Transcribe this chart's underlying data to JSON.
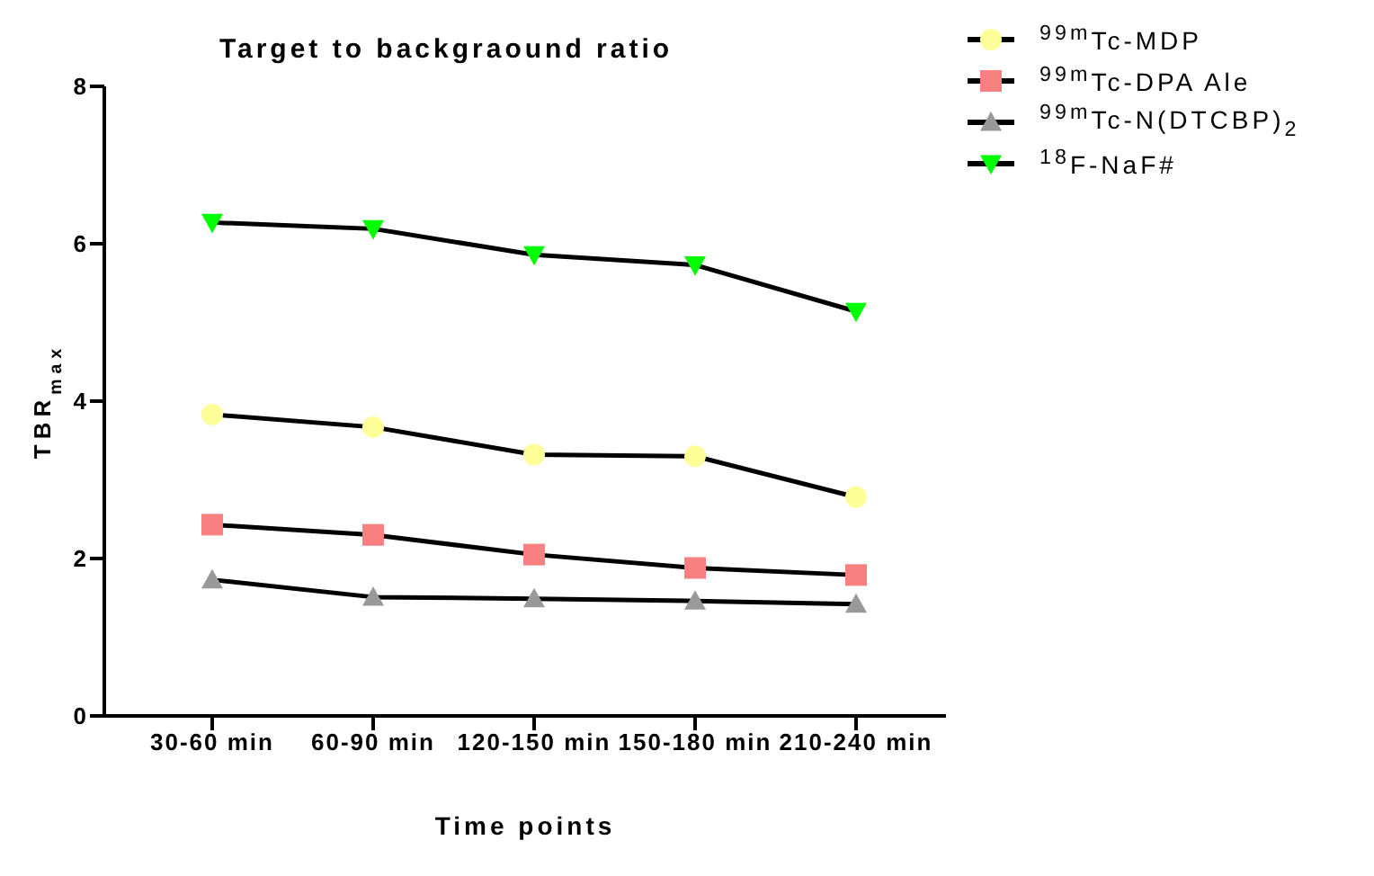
{
  "chart_data": {
    "type": "line",
    "title": "Target to backgraound ratio",
    "xlabel": "Time points",
    "ylabel": "TBR$_{max}$",
    "categories": [
      "30-60 min",
      "60-90 min",
      "120-150 min",
      "150-180 min",
      "210-240 min"
    ],
    "series": [
      {
        "name": "$^{99m}$Tc-MDP",
        "color": "#ffff99",
        "marker": "circle",
        "values": [
          3.83,
          3.67,
          3.32,
          3.3,
          2.78
        ]
      },
      {
        "name": "$^{99m}$Tc-DPA Ale",
        "color": "#f88080",
        "marker": "square",
        "values": [
          2.43,
          2.3,
          2.05,
          1.88,
          1.79
        ]
      },
      {
        "name": "$^{99m}$Tc-N(DTCBP)$_{2}$",
        "color": "#999999",
        "marker": "triangle",
        "values": [
          1.73,
          1.51,
          1.49,
          1.46,
          1.42
        ]
      },
      {
        "name": "$^{18}$F-NaF#",
        "color": "#00ff00",
        "marker": "triangle-down",
        "values": [
          6.27,
          6.19,
          5.86,
          5.73,
          5.14
        ]
      }
    ],
    "ylim": [
      0,
      8
    ],
    "yticks": [
      0,
      2,
      4,
      6,
      8
    ],
    "grid": false,
    "legend": "top right",
    "line_style": "solid"
  }
}
